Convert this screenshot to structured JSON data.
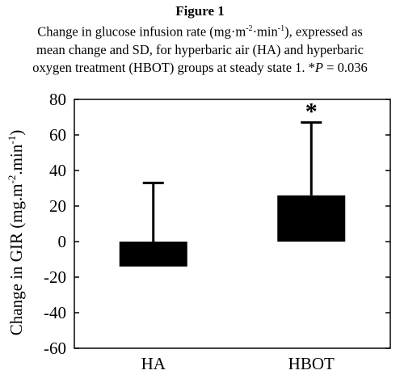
{
  "caption": {
    "label": "Figure 1",
    "line1": "Change in glucose infusion rate (mg·m",
    "line1_sup1": "-2",
    "line1_mid": "·min",
    "line1_sup2": "-1",
    "line1_end": "), expressed as",
    "line2": "mean change and SD, for hyperbaric air (HA) and hyperbaric",
    "line3_pre": "oxygen treatment (HBOT) groups at steady state 1. *",
    "line3_p": "P",
    "line3_post": " = 0.036"
  },
  "chart_data": {
    "type": "bar",
    "categories": [
      "HA",
      "HBOT"
    ],
    "values": [
      -14,
      26
    ],
    "error_sd": [
      47,
      41
    ],
    "ylim": [
      -60,
      80
    ],
    "yticks": [
      -60,
      -40,
      -20,
      0,
      20,
      40,
      60,
      80
    ],
    "ylabel": "Change in GIR (mg.m",
    "ylabel_sup1": "-2",
    "ylabel_mid": ".min",
    "ylabel_sup2": "-1",
    "ylabel_end": ")",
    "annotations": [
      {
        "category": "HBOT",
        "text": "*"
      }
    ],
    "bar_color": "#000000",
    "grid": false
  }
}
